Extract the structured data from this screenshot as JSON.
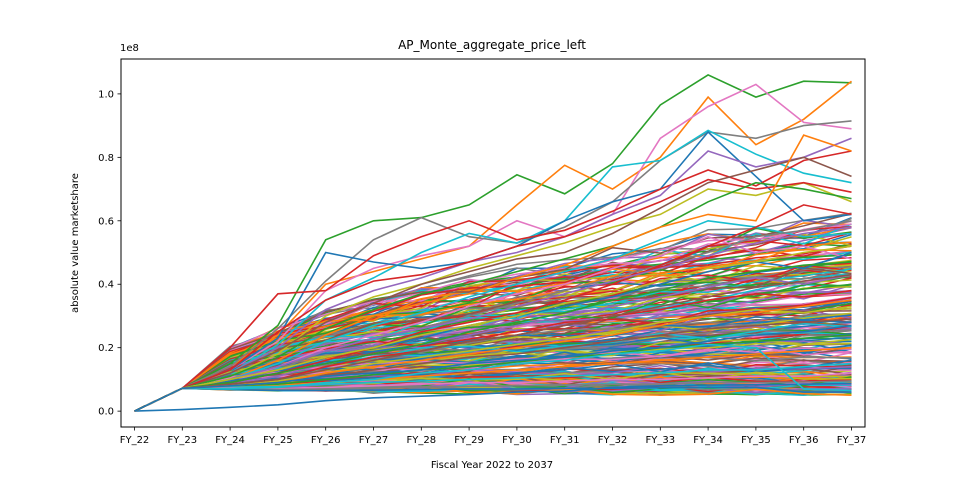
{
  "chart_data": {
    "type": "line",
    "title": "AP_Monte_aggregate_price_left",
    "xlabel": "Fiscal Year 2022 to 2037",
    "ylabel": "absolute value marketshare",
    "y_offset_text": "1e8",
    "categories": [
      "FY_22",
      "FY_23",
      "FY_24",
      "FY_25",
      "FY_26",
      "FY_27",
      "FY_28",
      "FY_29",
      "FY_30",
      "FY_31",
      "FY_32",
      "FY_33",
      "FY_34",
      "FY_35",
      "FY_36",
      "FY_37"
    ],
    "yticks": [
      0.0,
      0.2,
      0.4,
      0.6,
      0.8,
      1.0
    ],
    "ytick_labels": [
      "0.0",
      "0.2",
      "0.4",
      "0.6",
      "0.8",
      "1.0"
    ],
    "ylim": [
      -0.05,
      1.11
    ],
    "y_unit_scale": 100000000,
    "grid": false,
    "legend": "none",
    "palette": [
      "#1f77b4",
      "#ff7f0e",
      "#2ca02c",
      "#d62728",
      "#9467bd",
      "#8c564b",
      "#e377c2",
      "#7f7f7f",
      "#bcbd22",
      "#17becf"
    ],
    "series": [
      {
        "color": "#1f77b4",
        "values": [
          0.0,
          0.005,
          0.012,
          0.02,
          0.033,
          0.042,
          0.047,
          0.052,
          0.06,
          0.063,
          0.075,
          0.08,
          0.082,
          0.083,
          0.085,
          0.087
        ]
      },
      {
        "color": "#2ca02c",
        "values": [
          0.0,
          0.072,
          0.15,
          0.27,
          0.54,
          0.6,
          0.61,
          0.65,
          0.745,
          0.685,
          0.78,
          0.965,
          1.06,
          0.99,
          1.04,
          1.035
        ]
      },
      {
        "color": "#ff7f0e",
        "values": [
          0.0,
          0.072,
          0.14,
          0.24,
          0.4,
          0.44,
          0.48,
          0.52,
          0.65,
          0.775,
          0.7,
          0.8,
          0.99,
          0.84,
          0.92,
          1.04
        ]
      },
      {
        "color": "#e377c2",
        "values": [
          0.0,
          0.072,
          0.13,
          0.22,
          0.38,
          0.45,
          0.49,
          0.52,
          0.6,
          0.55,
          0.62,
          0.86,
          0.96,
          1.03,
          0.91,
          0.89
        ]
      },
      {
        "color": "#7f7f7f",
        "values": [
          0.0,
          0.072,
          0.14,
          0.26,
          0.41,
          0.54,
          0.61,
          0.55,
          0.53,
          0.58,
          0.66,
          0.79,
          0.88,
          0.86,
          0.9,
          0.915
        ]
      },
      {
        "color": "#17becf",
        "values": [
          0.0,
          0.072,
          0.12,
          0.21,
          0.35,
          0.42,
          0.5,
          0.56,
          0.53,
          0.6,
          0.77,
          0.79,
          0.885,
          0.81,
          0.75,
          0.72
        ]
      },
      {
        "color": "#1f77b4",
        "values": [
          0.0,
          0.072,
          0.13,
          0.23,
          0.5,
          0.47,
          0.45,
          0.47,
          0.52,
          0.6,
          0.66,
          0.7,
          0.88,
          0.74,
          0.6,
          0.62
        ]
      },
      {
        "color": "#d62728",
        "values": [
          0.0,
          0.072,
          0.2,
          0.37,
          0.38,
          0.49,
          0.55,
          0.6,
          0.54,
          0.57,
          0.63,
          0.7,
          0.76,
          0.71,
          0.79,
          0.82
        ]
      },
      {
        "color": "#9467bd",
        "values": [
          0.0,
          0.072,
          0.12,
          0.2,
          0.32,
          0.38,
          0.42,
          0.47,
          0.5,
          0.55,
          0.62,
          0.68,
          0.82,
          0.77,
          0.8,
          0.86
        ]
      },
      {
        "color": "#bcbd22",
        "values": [
          0.0,
          0.072,
          0.11,
          0.18,
          0.3,
          0.36,
          0.4,
          0.45,
          0.49,
          0.53,
          0.58,
          0.62,
          0.7,
          0.68,
          0.72,
          0.66
        ]
      },
      {
        "color": "#8c564b",
        "values": [
          0.0,
          0.072,
          0.12,
          0.19,
          0.28,
          0.34,
          0.4,
          0.44,
          0.48,
          0.5,
          0.56,
          0.64,
          0.72,
          0.76,
          0.8,
          0.74
        ]
      },
      {
        "color": "#d62728",
        "values": [
          0.0,
          0.072,
          0.13,
          0.25,
          0.35,
          0.41,
          0.43,
          0.47,
          0.52,
          0.55,
          0.6,
          0.66,
          0.73,
          0.7,
          0.72,
          0.69
        ]
      },
      {
        "color": "#2ca02c",
        "values": [
          0.0,
          0.072,
          0.11,
          0.17,
          0.26,
          0.32,
          0.37,
          0.4,
          0.44,
          0.48,
          0.52,
          0.58,
          0.66,
          0.72,
          0.7,
          0.67
        ]
      },
      {
        "color": "#ff7f0e",
        "values": [
          0.0,
          0.072,
          0.1,
          0.16,
          0.24,
          0.3,
          0.34,
          0.37,
          0.42,
          0.46,
          0.52,
          0.58,
          0.62,
          0.6,
          0.87,
          0.82
        ]
      },
      {
        "color": "#17becf",
        "values": [
          0.0,
          0.072,
          0.1,
          0.15,
          0.22,
          0.27,
          0.31,
          0.36,
          0.4,
          0.44,
          0.48,
          0.54,
          0.6,
          0.58,
          0.55,
          0.56
        ]
      },
      {
        "color": "#e377c2",
        "values": [
          0.0,
          0.072,
          0.09,
          0.14,
          0.2,
          0.24,
          0.28,
          0.33,
          0.37,
          0.4,
          0.45,
          0.49,
          0.55,
          0.5,
          0.52,
          0.48
        ]
      },
      {
        "color": "#7f7f7f",
        "values": [
          0.0,
          0.072,
          0.09,
          0.13,
          0.19,
          0.23,
          0.26,
          0.3,
          0.34,
          0.38,
          0.42,
          0.46,
          0.5,
          0.55,
          0.57,
          0.6
        ]
      },
      {
        "color": "#1f77b4",
        "values": [
          0.0,
          0.072,
          0.095,
          0.12,
          0.17,
          0.2,
          0.23,
          0.27,
          0.3,
          0.33,
          0.36,
          0.4,
          0.44,
          0.47,
          0.45,
          0.5
        ]
      },
      {
        "color": "#9467bd",
        "values": [
          0.0,
          0.072,
          0.085,
          0.11,
          0.15,
          0.18,
          0.21,
          0.24,
          0.27,
          0.3,
          0.33,
          0.36,
          0.39,
          0.42,
          0.4,
          0.43
        ]
      },
      {
        "color": "#d62728",
        "values": [
          0.0,
          0.072,
          0.085,
          0.1,
          0.14,
          0.17,
          0.19,
          0.22,
          0.24,
          0.27,
          0.3,
          0.32,
          0.35,
          0.37,
          0.36,
          0.38
        ]
      },
      {
        "color": "#bcbd22",
        "values": [
          0.0,
          0.072,
          0.08,
          0.095,
          0.12,
          0.15,
          0.17,
          0.19,
          0.21,
          0.23,
          0.25,
          0.28,
          0.3,
          0.32,
          0.31,
          0.33
        ]
      },
      {
        "color": "#8c564b",
        "values": [
          0.0,
          0.072,
          0.08,
          0.09,
          0.11,
          0.13,
          0.15,
          0.17,
          0.18,
          0.2,
          0.22,
          0.24,
          0.26,
          0.27,
          0.28,
          0.29
        ]
      },
      {
        "color": "#2ca02c",
        "values": [
          0.0,
          0.072,
          0.078,
          0.085,
          0.1,
          0.115,
          0.13,
          0.14,
          0.155,
          0.17,
          0.18,
          0.2,
          0.21,
          0.22,
          0.23,
          0.24
        ]
      },
      {
        "color": "#ff7f0e",
        "values": [
          0.0,
          0.072,
          0.075,
          0.08,
          0.09,
          0.1,
          0.11,
          0.12,
          0.13,
          0.14,
          0.15,
          0.16,
          0.17,
          0.18,
          0.19,
          0.2
        ]
      },
      {
        "color": "#17becf",
        "values": [
          0.0,
          0.072,
          0.075,
          0.078,
          0.085,
          0.09,
          0.095,
          0.1,
          0.105,
          0.11,
          0.115,
          0.12,
          0.13,
          0.13,
          0.14,
          0.15
        ]
      },
      {
        "color": "#e377c2",
        "values": [
          0.0,
          0.072,
          0.072,
          0.07,
          0.075,
          0.08,
          0.085,
          0.09,
          0.09,
          0.095,
          0.1,
          0.1,
          0.105,
          0.11,
          0.11,
          0.12
        ]
      },
      {
        "color": "#7f7f7f",
        "values": [
          0.0,
          0.072,
          0.07,
          0.068,
          0.07,
          0.072,
          0.075,
          0.078,
          0.08,
          0.082,
          0.085,
          0.085,
          0.09,
          0.09,
          0.092,
          0.095
        ]
      },
      {
        "color": "#1f77b4",
        "values": [
          0.0,
          0.072,
          0.068,
          0.065,
          0.065,
          0.066,
          0.068,
          0.07,
          0.07,
          0.072,
          0.072,
          0.074,
          0.075,
          0.075,
          0.06,
          0.06
        ]
      },
      {
        "color": "#17becf",
        "values": [
          0.0,
          0.072,
          0.07,
          0.075,
          0.09,
          0.1,
          0.12,
          0.13,
          0.15,
          0.16,
          0.18,
          0.19,
          0.21,
          0.2,
          0.07,
          0.065
        ]
      },
      {
        "color": "#d62728",
        "values": [
          0.0,
          0.072,
          0.09,
          0.12,
          0.16,
          0.2,
          0.25,
          0.28,
          0.31,
          0.35,
          0.4,
          0.46,
          0.52,
          0.58,
          0.65,
          0.62
        ]
      },
      {
        "color": "#9467bd",
        "values": [
          0.0,
          0.072,
          0.1,
          0.14,
          0.19,
          0.23,
          0.26,
          0.29,
          0.33,
          0.37,
          0.41,
          0.45,
          0.49,
          0.53,
          0.56,
          0.58
        ]
      },
      {
        "color": "#bcbd22",
        "values": [
          0.0,
          0.072,
          0.1,
          0.13,
          0.17,
          0.2,
          0.24,
          0.27,
          0.3,
          0.34,
          0.37,
          0.41,
          0.45,
          0.47,
          0.5,
          0.52
        ]
      },
      {
        "color": "#2ca02c",
        "values": [
          0.0,
          0.072,
          0.09,
          0.12,
          0.15,
          0.18,
          0.21,
          0.25,
          0.28,
          0.31,
          0.35,
          0.38,
          0.42,
          0.44,
          0.46,
          0.47
        ]
      },
      {
        "color": "#8c564b",
        "values": [
          0.0,
          0.072,
          0.085,
          0.1,
          0.13,
          0.16,
          0.19,
          0.22,
          0.24,
          0.27,
          0.3,
          0.33,
          0.36,
          0.39,
          0.41,
          0.43
        ]
      },
      {
        "color": "#ff7f0e",
        "values": [
          0.0,
          0.072,
          0.08,
          0.09,
          0.12,
          0.14,
          0.16,
          0.18,
          0.2,
          0.22,
          0.24,
          0.27,
          0.3,
          0.31,
          0.33,
          0.35
        ]
      },
      {
        "color": "#1f77b4",
        "values": [
          0.0,
          0.072,
          0.08,
          0.09,
          0.11,
          0.12,
          0.13,
          0.15,
          0.16,
          0.17,
          0.19,
          0.2,
          0.22,
          0.24,
          0.25,
          0.27
        ]
      }
    ],
    "ensemble": {
      "count": 260,
      "start": 0.072,
      "min_end": 0.06,
      "max_end": 0.62
    }
  }
}
